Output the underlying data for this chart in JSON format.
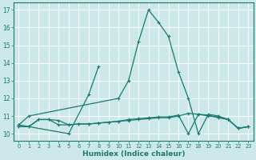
{
  "background_color": "#cde8e8",
  "grid_color": "#b8d8d8",
  "line_color": "#1a7a6e",
  "xlabel": "Humidex (Indice chaleur)",
  "xlim": [
    -0.5,
    23.5
  ],
  "ylim": [
    9.6,
    17.4
  ],
  "yticks": [
    10,
    11,
    12,
    13,
    14,
    15,
    16,
    17
  ],
  "xtick_labels": [
    "0",
    "1",
    "2",
    "3",
    "4",
    "5",
    "6",
    "7",
    "8",
    "9",
    "10",
    "11",
    "12",
    "13",
    "14",
    "15",
    "16",
    "17",
    "18",
    "19",
    "20",
    "21",
    "22",
    "23"
  ],
  "series": [
    [
      10.5,
      11.0,
      null,
      null,
      null,
      null,
      null,
      null,
      null,
      null,
      12.0,
      13.0,
      15.2,
      17.0,
      16.3,
      15.5,
      13.5,
      12.0,
      10.0,
      11.1,
      11.0,
      10.8,
      10.3,
      10.4
    ],
    [
      10.5,
      null,
      null,
      null,
      null,
      10.0,
      null,
      12.2,
      13.8,
      null,
      null,
      null,
      null,
      null,
      null,
      null,
      null,
      null,
      null,
      null,
      null,
      null,
      null,
      null
    ],
    [
      10.4,
      10.4,
      10.8,
      10.8,
      10.5,
      10.5,
      10.55,
      10.55,
      10.6,
      10.65,
      10.7,
      10.75,
      10.8,
      10.85,
      10.9,
      10.9,
      11.0,
      11.15,
      11.1,
      11.05,
      10.9,
      10.8,
      10.3,
      10.4
    ],
    [
      10.4,
      10.4,
      10.8,
      10.8,
      10.75,
      10.5,
      10.55,
      10.55,
      10.6,
      10.65,
      10.7,
      10.8,
      10.85,
      10.9,
      10.95,
      10.95,
      11.05,
      10.0,
      11.1,
      11.0,
      10.95,
      10.8,
      10.3,
      10.4
    ]
  ]
}
